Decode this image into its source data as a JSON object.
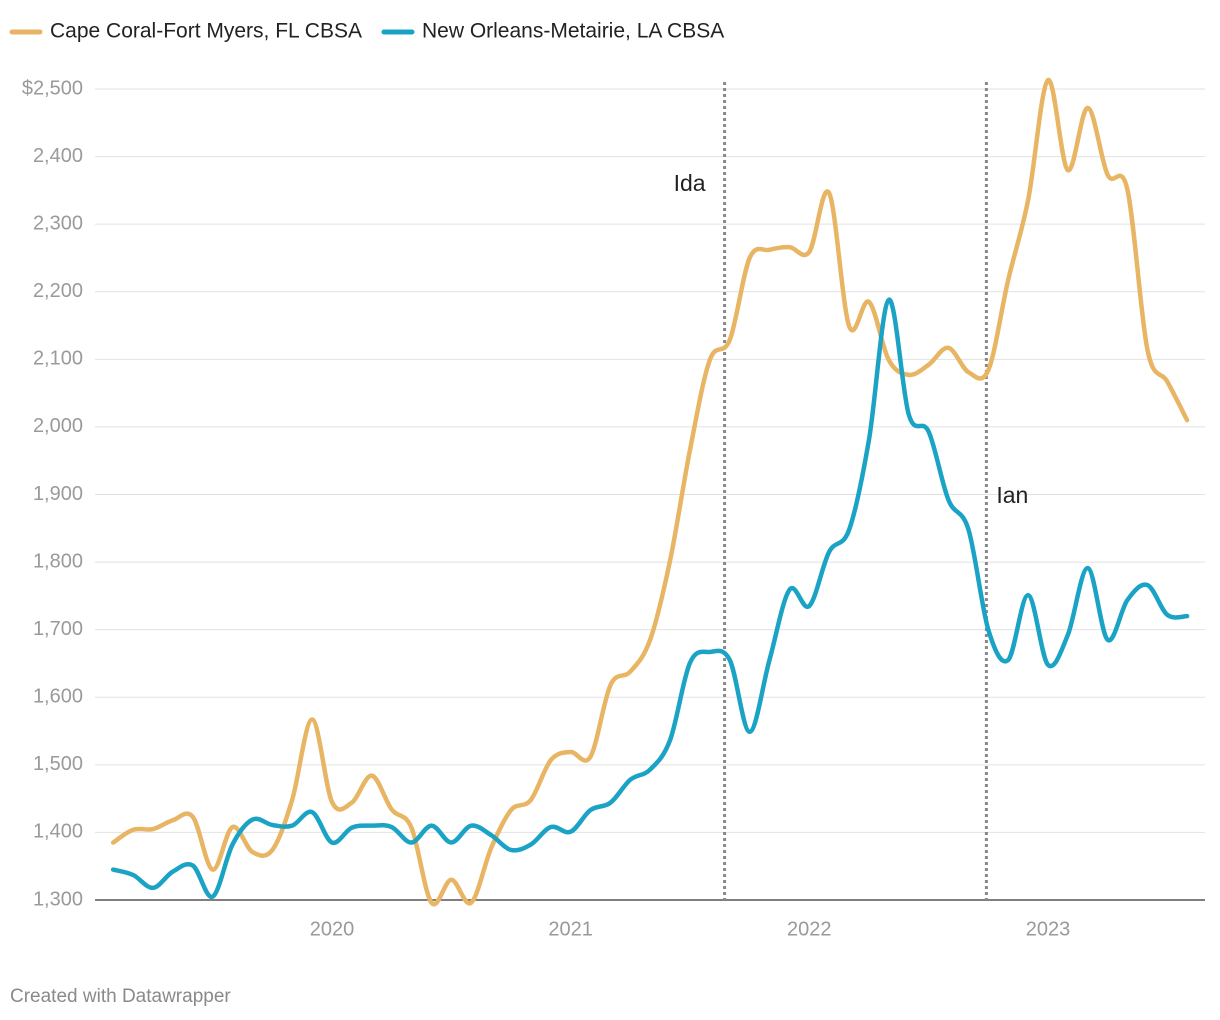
{
  "chart_data": {
    "type": "line",
    "x": [
      2019.083,
      2019.167,
      2019.25,
      2019.333,
      2019.417,
      2019.5,
      2019.583,
      2019.667,
      2019.75,
      2019.833,
      2019.917,
      2020.0,
      2020.083,
      2020.167,
      2020.25,
      2020.333,
      2020.417,
      2020.5,
      2020.583,
      2020.667,
      2020.75,
      2020.833,
      2020.917,
      2021.0,
      2021.083,
      2021.167,
      2021.25,
      2021.333,
      2021.417,
      2021.5,
      2021.583,
      2021.667,
      2021.75,
      2021.833,
      2021.917,
      2022.0,
      2022.083,
      2022.167,
      2022.25,
      2022.333,
      2022.417,
      2022.5,
      2022.583,
      2022.667,
      2022.75,
      2022.833,
      2022.917,
      2023.0,
      2023.083,
      2023.167,
      2023.25,
      2023.333,
      2023.417,
      2023.5,
      2023.583
    ],
    "series": [
      {
        "name": "Cape Coral-Fort Myers, FL CBSA",
        "color": "#e8b565",
        "values": [
          1385,
          1404,
          1405,
          1418,
          1423,
          1345,
          1408,
          1371,
          1374,
          1448,
          1567,
          1445,
          1444,
          1484,
          1434,
          1407,
          1296,
          1330,
          1296,
          1377,
          1433,
          1448,
          1507,
          1519,
          1512,
          1618,
          1638,
          1685,
          1803,
          1966,
          2099,
          2129,
          2250,
          2262,
          2266,
          2259,
          2346,
          2149,
          2185,
          2099,
          2077,
          2092,
          2117,
          2081,
          2084,
          2217,
          2336,
          2513,
          2380,
          2472,
          2373,
          2351,
          2114,
          2067,
          2010
        ]
      },
      {
        "name": "New Orleans-Metairie, LA CBSA",
        "color": "#1ba3c6",
        "values": [
          1345,
          1337,
          1318,
          1342,
          1351,
          1305,
          1382,
          1419,
          1411,
          1410,
          1430,
          1385,
          1407,
          1410,
          1408,
          1385,
          1410,
          1385,
          1410,
          1396,
          1374,
          1382,
          1408,
          1401,
          1433,
          1444,
          1478,
          1493,
          1537,
          1651,
          1667,
          1655,
          1549,
          1655,
          1759,
          1735,
          1815,
          1848,
          1981,
          2188,
          2018,
          1993,
          1892,
          1848,
          1700,
          1655,
          1751,
          1648,
          1692,
          1791,
          1685,
          1744,
          1766,
          1722,
          1720
        ]
      }
    ],
    "xlim": [
      2019.007,
      2023.658
    ],
    "xticks": [
      2020,
      2021,
      2022,
      2023
    ],
    "ylim": [
      1300,
      2500
    ],
    "yticks": [
      {
        "value": 1300,
        "label": "1,300"
      },
      {
        "value": 1400,
        "label": "1,400"
      },
      {
        "value": 1500,
        "label": "1,500"
      },
      {
        "value": 1600,
        "label": "1,600"
      },
      {
        "value": 1700,
        "label": "1,700"
      },
      {
        "value": 1800,
        "label": "1,800"
      },
      {
        "value": 1900,
        "label": "1,900"
      },
      {
        "value": 2000,
        "label": "2,000"
      },
      {
        "value": 2100,
        "label": "2,100"
      },
      {
        "value": 2200,
        "label": "2,200"
      },
      {
        "value": 2300,
        "label": "2,300"
      },
      {
        "value": 2400,
        "label": "2,400"
      },
      {
        "value": 2500,
        "label": "$2,500"
      }
    ],
    "grid": true,
    "annotations": [
      {
        "text": "Ida",
        "x": 2021.645
      },
      {
        "text": "Ian",
        "x": 2022.742
      }
    ],
    "footer": "Created with Datawrapper"
  }
}
